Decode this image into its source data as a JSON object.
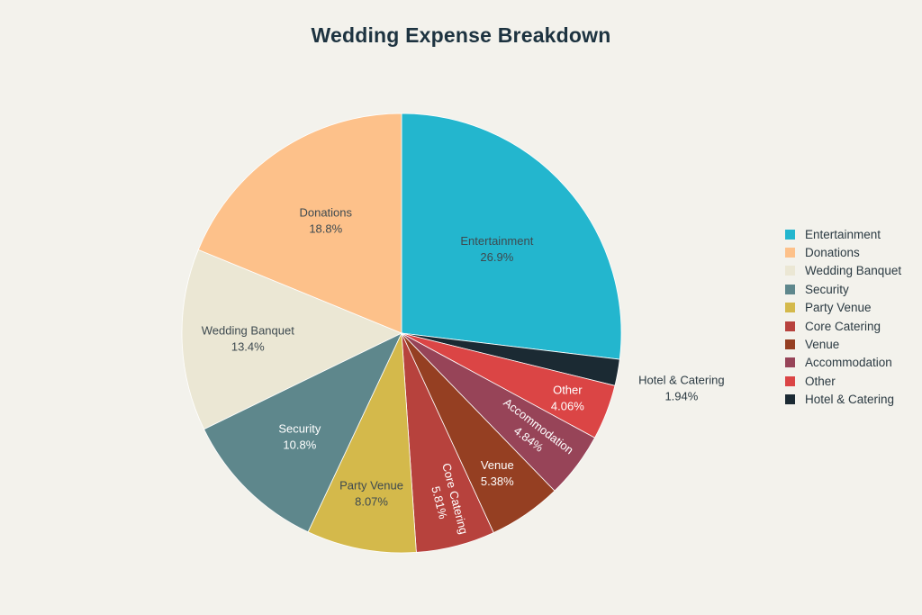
{
  "chart_data": {
    "type": "pie",
    "title": "Wedding Expense Breakdown",
    "slices": [
      {
        "label": "Entertainment",
        "value": 26.9,
        "display": "26.9%",
        "color": "#23b6ce"
      },
      {
        "label": "Hotel & Catering",
        "value": 1.94,
        "display": "1.94%",
        "color": "#1b2a33"
      },
      {
        "label": "Other",
        "value": 4.06,
        "display": "4.06%",
        "color": "#db4545"
      },
      {
        "label": "Accommodation",
        "value": 4.84,
        "display": "4.84%",
        "color": "#974458"
      },
      {
        "label": "Venue",
        "value": 5.38,
        "display": "5.38%",
        "color": "#953f22"
      },
      {
        "label": "Core Catering",
        "value": 5.81,
        "display": "5.81%",
        "color": "#b7423d"
      },
      {
        "label": "Party Venue",
        "value": 8.07,
        "display": "8.07%",
        "color": "#d4b94b"
      },
      {
        "label": "Security",
        "value": 10.8,
        "display": "10.8%",
        "color": "#5e878c"
      },
      {
        "label": "Wedding Banquet",
        "value": 13.4,
        "display": "13.4%",
        "color": "#ebe7d4"
      },
      {
        "label": "Donations",
        "value": 18.8,
        "display": "18.8%",
        "color": "#fdc18a"
      }
    ],
    "legend": {
      "position": "right",
      "items": [
        "Entertainment",
        "Donations",
        "Wedding Banquet",
        "Security",
        "Party Venue",
        "Core Catering",
        "Venue",
        "Accommodation",
        "Other",
        "Hotel & Catering"
      ]
    }
  }
}
